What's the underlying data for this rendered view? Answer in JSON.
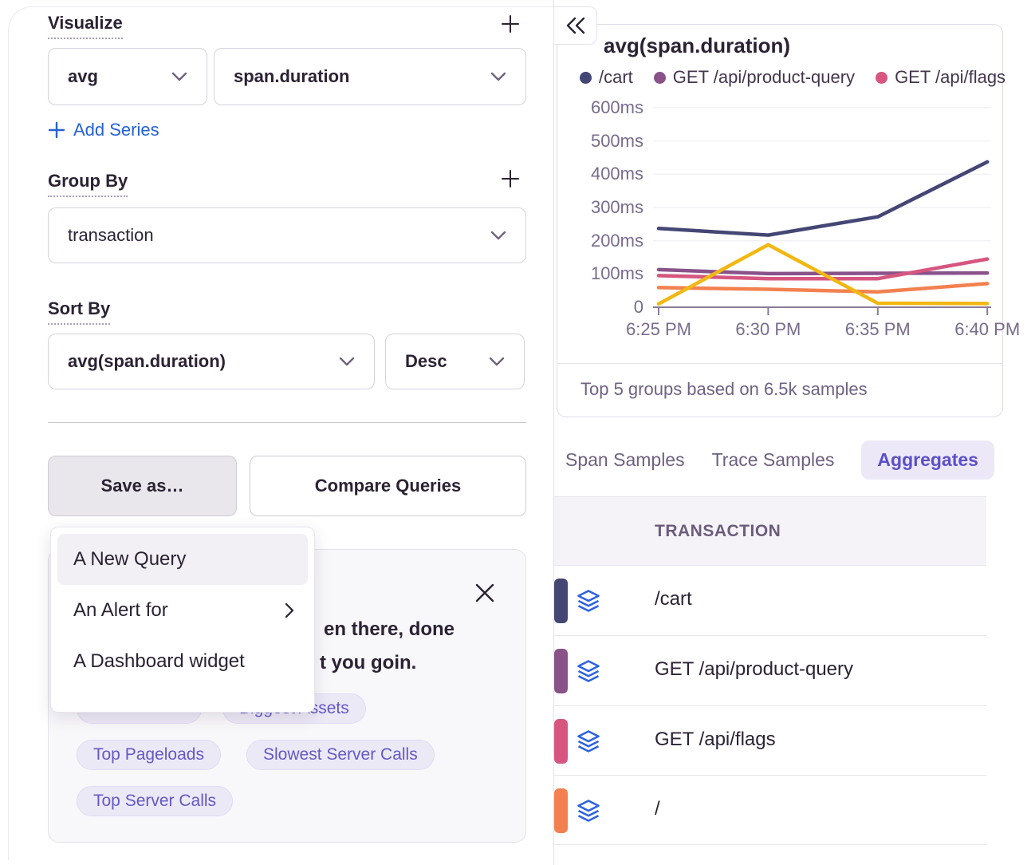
{
  "left_panel": {
    "visualize": {
      "label": "Visualize",
      "aggregate": "avg",
      "field": "span.duration",
      "add_series": "Add Series"
    },
    "group_by": {
      "label": "Group By",
      "value": "transaction"
    },
    "sort_by": {
      "label": "Sort By",
      "field": "avg(span.duration)",
      "direction": "Desc"
    },
    "actions": {
      "save_as": "Save as…",
      "compare": "Compare Queries"
    },
    "save_menu": {
      "items": [
        {
          "label": "A New Query"
        },
        {
          "label": "An Alert for"
        },
        {
          "label": "A Dashboard widget"
        }
      ]
    },
    "suggested_card": {
      "text_line1": "en there, done",
      "text_line2": "t you goin.",
      "pills": [
        {
          "label": ""
        },
        {
          "label": "Biggest Assets"
        },
        {
          "label": "Top Pageloads"
        },
        {
          "label": "Slowest Server Calls"
        },
        {
          "label": "Top Server Calls"
        }
      ]
    }
  },
  "right_panel": {
    "chart_title": "avg(span.duration)",
    "legend": [
      {
        "label": "/cart",
        "color": "#444674"
      },
      {
        "label": "GET /api/product-query",
        "color": "#895289"
      },
      {
        "label": "GET /api/flags",
        "color": "#d6567f"
      }
    ],
    "footer": "Top 5 groups based on 6.5k samples",
    "tabs": [
      {
        "label": "Span Samples"
      },
      {
        "label": "Trace Samples"
      },
      {
        "label": "Aggregates",
        "active": true
      }
    ],
    "table": {
      "header": "TRANSACTION",
      "rows": [
        {
          "color": "#444674",
          "label": "/cart"
        },
        {
          "color": "#895289",
          "label": "GET /api/product-query"
        },
        {
          "color": "#d6567f",
          "label": "GET /api/flags"
        },
        {
          "color": "#f38150",
          "label": "/"
        }
      ]
    }
  },
  "chart_data": {
    "type": "line",
    "title": "avg(span.duration)",
    "x": [
      "6:25 PM",
      "6:30 PM",
      "6:35 PM",
      "6:40 PM"
    ],
    "ylabel_ticks": [
      "0",
      "100ms",
      "200ms",
      "300ms",
      "400ms",
      "500ms",
      "600ms"
    ],
    "ylim": [
      0,
      600
    ],
    "unit": "ms",
    "grid": true,
    "legend_position": "top",
    "caption": "Top 5 groups based on 6.5k samples",
    "series": [
      {
        "name": "/cart",
        "color": "#444674",
        "values": [
          237,
          217,
          272,
          437
        ]
      },
      {
        "name": "GET /api/product-query",
        "color": "#895289",
        "values": [
          113,
          101,
          102,
          103
        ]
      },
      {
        "name": "GET /api/flags",
        "color": "#d6567f",
        "values": [
          95,
          86,
          86,
          145
        ]
      },
      {
        "name": "/",
        "color": "#f38150",
        "values": [
          59,
          54,
          46,
          71
        ]
      },
      {
        "name": "",
        "color": "#f2b712",
        "values": [
          10,
          188,
          12,
          11
        ]
      }
    ]
  }
}
